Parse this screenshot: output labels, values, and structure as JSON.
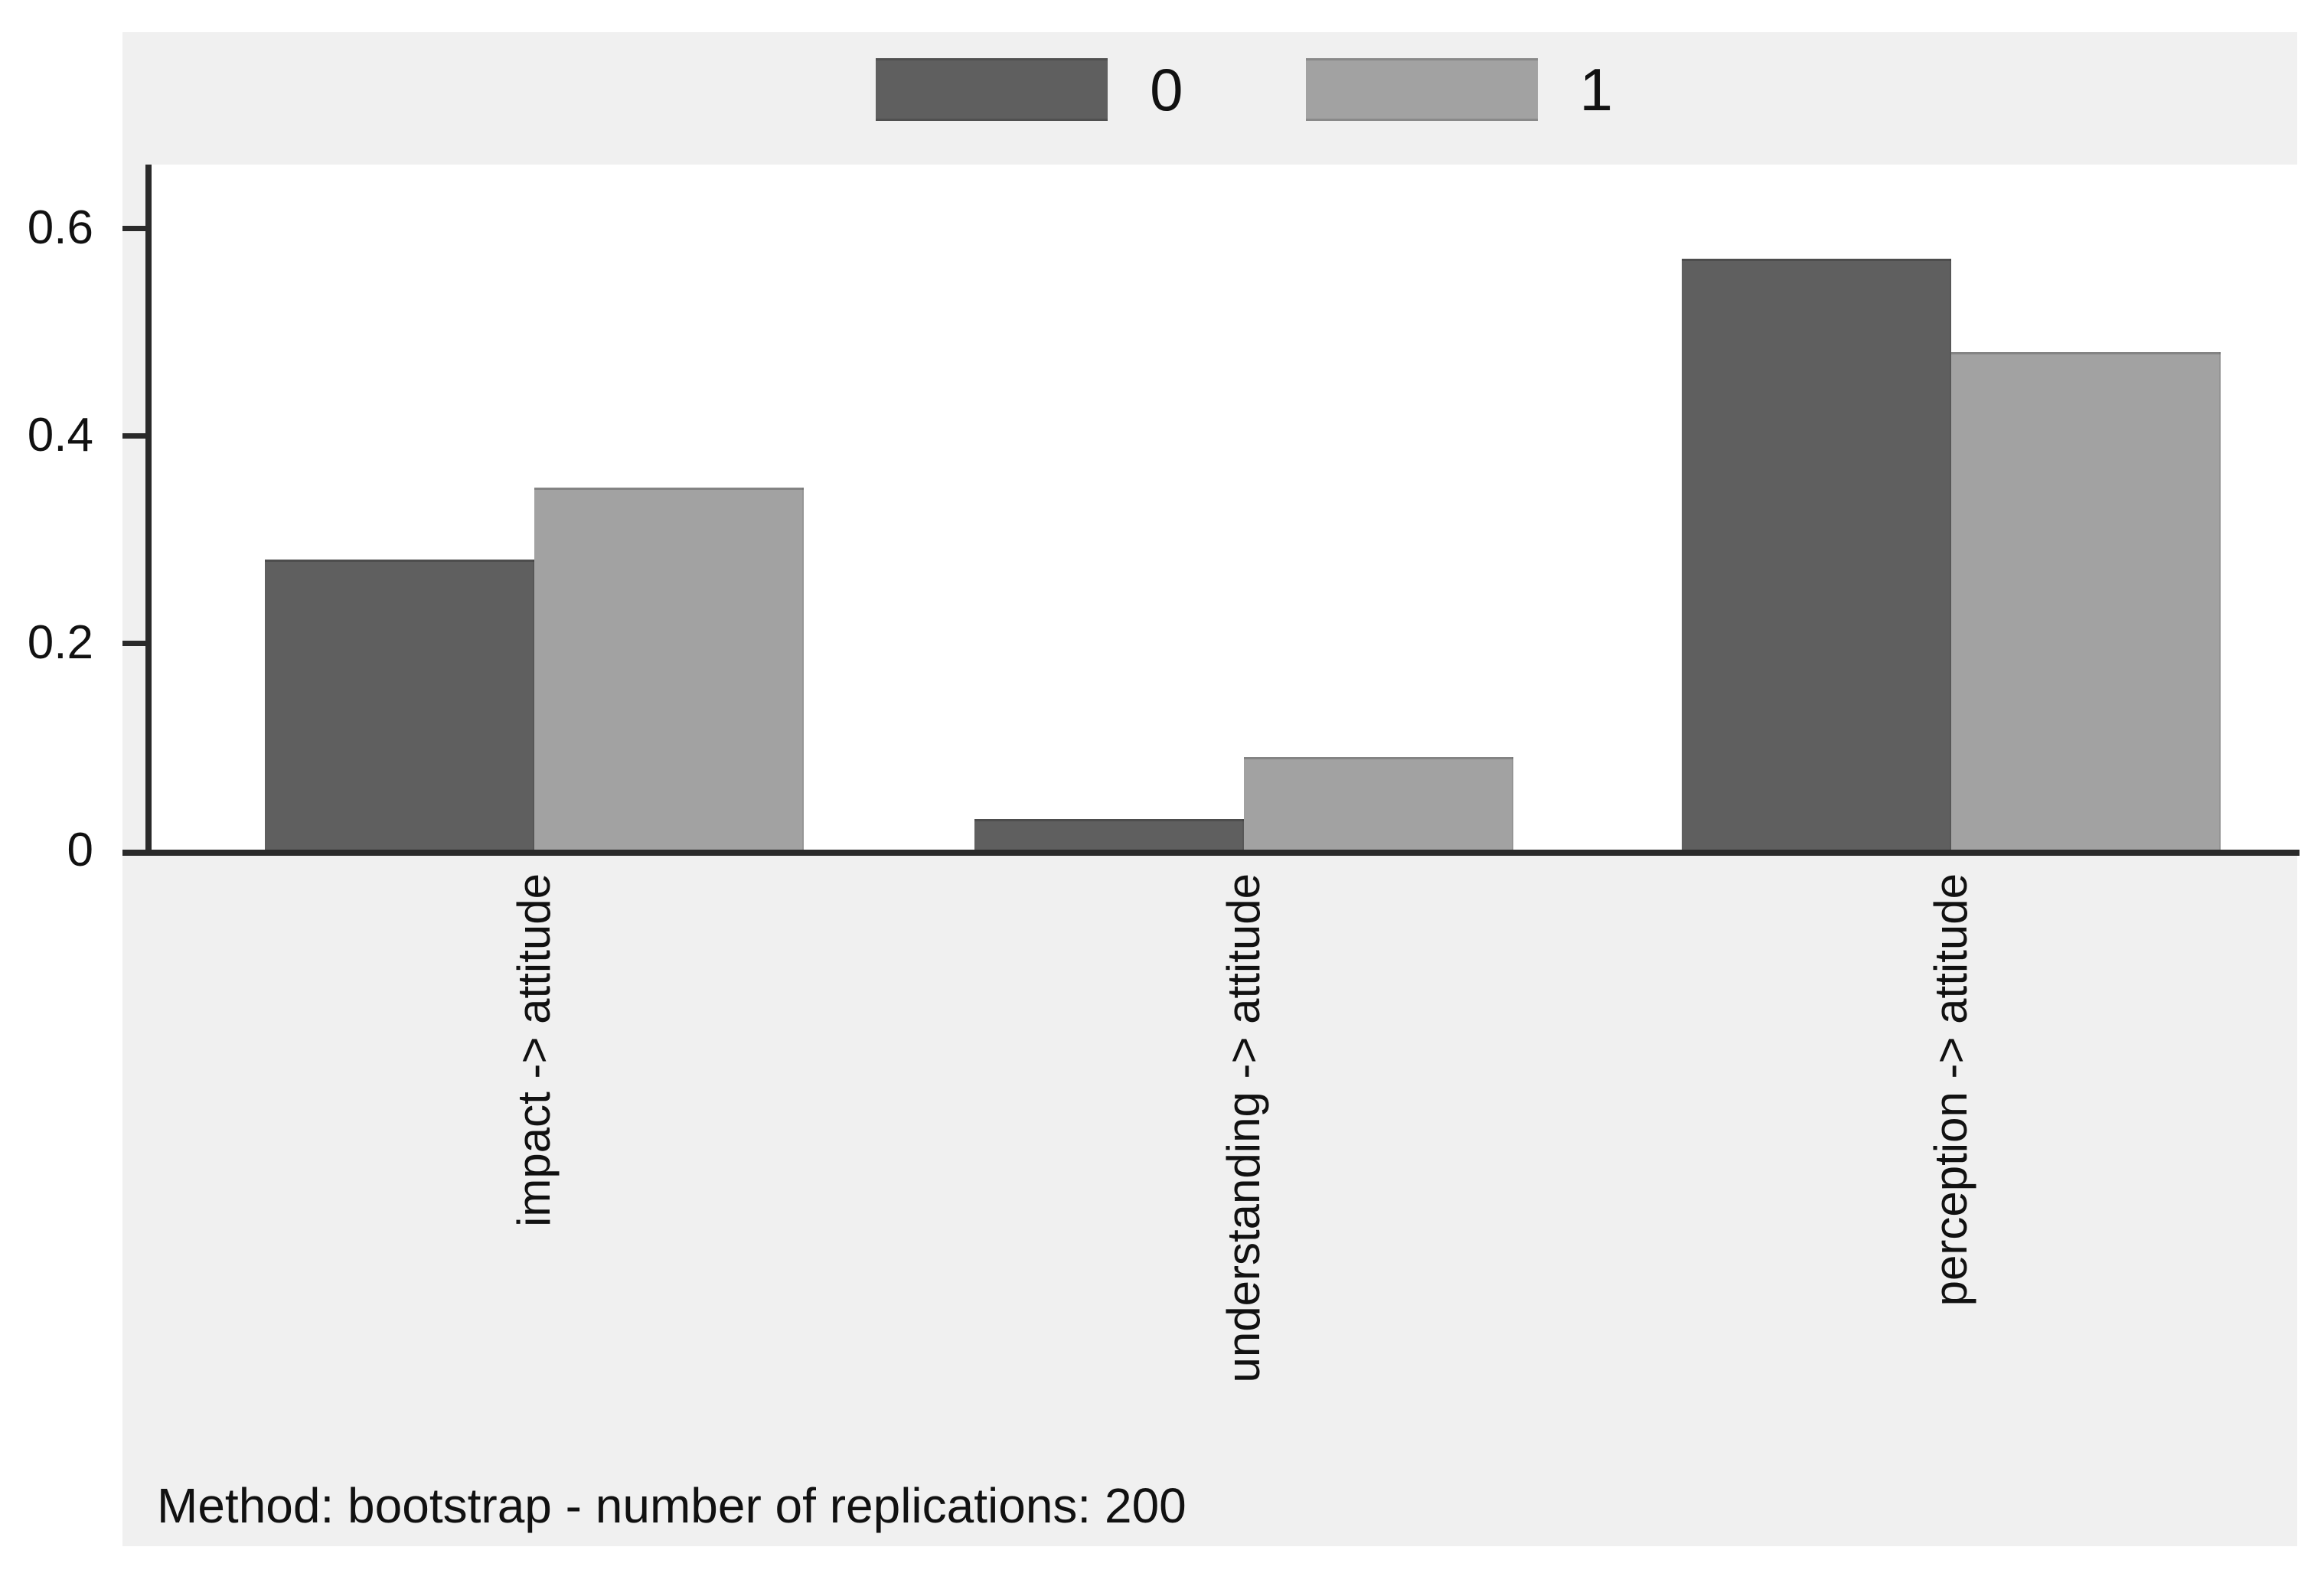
{
  "chart_data": {
    "type": "bar",
    "title": "",
    "categories": [
      "impact -> attitude",
      "understanding -> attitude",
      "perception -> attitude"
    ],
    "series": [
      {
        "name": "0",
        "color": "#5f5f5f",
        "values": [
          0.28,
          0.03,
          0.57
        ]
      },
      {
        "name": "1",
        "color": "#a2a2a2",
        "values": [
          0.35,
          0.09,
          0.48
        ]
      }
    ],
    "xlabel": "",
    "ylabel": "",
    "ylim": [
      0,
      0.661
    ],
    "yticks": [
      0,
      0.2,
      0.4,
      0.6
    ],
    "ytick_labels": [
      "0",
      "0.2",
      "0.4",
      "0.6"
    ],
    "grid": false,
    "legend_position": "top-center",
    "note": "Method: bootstrap - number of replications: 200"
  },
  "colors": {
    "graph_background": "#f0f0f0",
    "plot_background": "#ffffff",
    "axis_line": "#2a2a2a",
    "text": "#111111",
    "series_0": "#5f5f5f",
    "series_1": "#a2a2a2"
  }
}
